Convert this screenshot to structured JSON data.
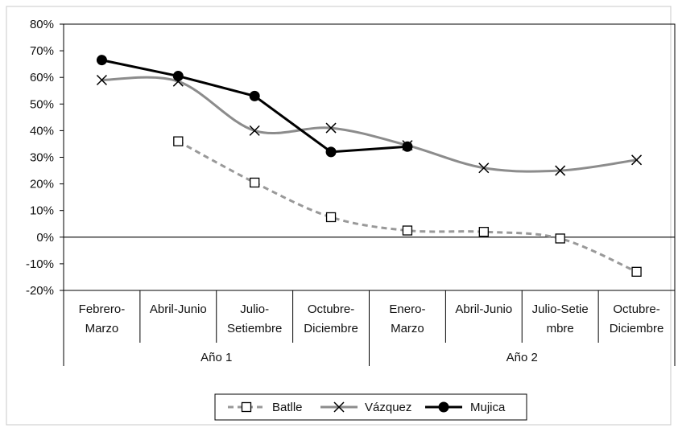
{
  "chart_data": {
    "type": "line",
    "categories": [
      [
        "Febrero-",
        "Marzo"
      ],
      [
        "Abril-Junio"
      ],
      [
        "Julio-",
        "Setiembre"
      ],
      [
        "Octubre-",
        "Diciembre"
      ],
      [
        "Enero-",
        "Marzo"
      ],
      [
        "Abril-Junio"
      ],
      [
        "Julio-Setie",
        "mbre"
      ],
      [
        "Octubre-",
        "Diciembre"
      ]
    ],
    "groups": [
      {
        "label": "Año 1",
        "span": 4
      },
      {
        "label": "Año 2",
        "span": 4
      }
    ],
    "y_ticks": [
      "80%",
      "70%",
      "60%",
      "50%",
      "40%",
      "30%",
      "20%",
      "10%",
      "0%",
      "-10%",
      "-20%"
    ],
    "ylim": [
      -20,
      80
    ],
    "grid": false,
    "legend_position": "bottom",
    "series": [
      {
        "name": "Batlle",
        "color": "#999999",
        "dashed": true,
        "smooth": true,
        "marker": "square",
        "values": [
          null,
          36,
          20.5,
          7.5,
          2.5,
          2,
          -0.5,
          -13
        ]
      },
      {
        "name": "Vázquez",
        "color": "#8c8c8c",
        "dashed": false,
        "smooth": true,
        "marker": "cross",
        "values": [
          59,
          58.5,
          40,
          41,
          34.5,
          26,
          25,
          29
        ]
      },
      {
        "name": "Mujica",
        "color": "#000000",
        "dashed": false,
        "smooth": false,
        "marker": "circle",
        "values": [
          66.5,
          60.5,
          53,
          32,
          34,
          null,
          null,
          null
        ]
      }
    ]
  }
}
